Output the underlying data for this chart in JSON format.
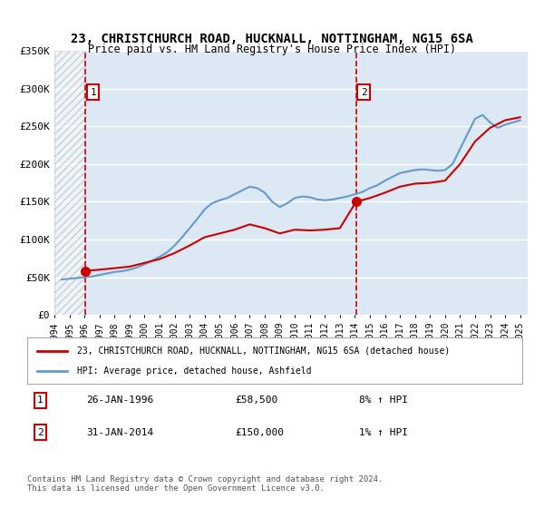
{
  "title": "23, CHRISTCHURCH ROAD, HUCKNALL, NOTTINGHAM, NG15 6SA",
  "subtitle": "Price paid vs. HM Land Registry's House Price Index (HPI)",
  "legend_line1": "23, CHRISTCHURCH ROAD, HUCKNALL, NOTTINGHAM, NG15 6SA (detached house)",
  "legend_line2": "HPI: Average price, detached house, Ashfield",
  "annotation1_label": "1",
  "annotation1_date": "26-JAN-1996",
  "annotation1_price": "£58,500",
  "annotation1_hpi": "8% ↑ HPI",
  "annotation1_year": 1996.07,
  "annotation1_value": 58500,
  "annotation2_label": "2",
  "annotation2_date": "31-JAN-2014",
  "annotation2_price": "£150,000",
  "annotation2_hpi": "1% ↑ HPI",
  "annotation2_year": 2014.08,
  "annotation2_value": 150000,
  "footer": "Contains HM Land Registry data © Crown copyright and database right 2024.\nThis data is licensed under the Open Government Licence v3.0.",
  "ylim": [
    0,
    350000
  ],
  "yticks": [
    0,
    50000,
    100000,
    150000,
    200000,
    250000,
    300000,
    350000
  ],
  "ytick_labels": [
    "£0",
    "£50K",
    "£100K",
    "£150K",
    "£200K",
    "£250K",
    "£300K",
    "£350K"
  ],
  "xlim_start": 1994.0,
  "xlim_end": 2025.5,
  "red_color": "#cc0000",
  "blue_color": "#6699cc",
  "hatch_color": "#cccccc",
  "bg_color": "#dce9f5",
  "grid_color": "#ffffff",
  "years": [
    1994,
    1995,
    1996,
    1997,
    1998,
    1999,
    2000,
    2001,
    2002,
    2003,
    2004,
    2005,
    2006,
    2007,
    2008,
    2009,
    2010,
    2011,
    2012,
    2013,
    2014,
    2015,
    2016,
    2017,
    2018,
    2019,
    2020,
    2021,
    2022,
    2023,
    2024,
    2025
  ],
  "xtick_labels": [
    "1994",
    "1995",
    "1996",
    "1997",
    "1998",
    "1999",
    "2000",
    "2001",
    "2002",
    "2003",
    "2004",
    "2005",
    "2006",
    "2007",
    "2008",
    "2009",
    "2010",
    "2011",
    "2012",
    "2013",
    "2014",
    "2015",
    "2016",
    "2017",
    "2018",
    "2019",
    "2020",
    "2021",
    "2022",
    "2023",
    "2024",
    "2025"
  ],
  "hpi_data": {
    "years": [
      1994.5,
      1995.0,
      1995.5,
      1996.0,
      1996.5,
      1997.0,
      1997.5,
      1998.0,
      1998.5,
      1999.0,
      1999.5,
      2000.0,
      2000.5,
      2001.0,
      2001.5,
      2002.0,
      2002.5,
      2003.0,
      2003.5,
      2004.0,
      2004.5,
      2005.0,
      2005.5,
      2006.0,
      2006.5,
      2007.0,
      2007.5,
      2008.0,
      2008.5,
      2009.0,
      2009.5,
      2010.0,
      2010.5,
      2011.0,
      2011.5,
      2012.0,
      2012.5,
      2013.0,
      2013.5,
      2014.0,
      2014.5,
      2015.0,
      2015.5,
      2016.0,
      2016.5,
      2017.0,
      2017.5,
      2018.0,
      2018.5,
      2019.0,
      2019.5,
      2020.0,
      2020.5,
      2021.0,
      2021.5,
      2022.0,
      2022.5,
      2023.0,
      2023.5,
      2024.0,
      2024.5,
      2025.0
    ],
    "values": [
      47000,
      48000,
      49000,
      50000,
      51000,
      53000,
      55000,
      57000,
      58000,
      60000,
      63000,
      67000,
      72000,
      77000,
      83000,
      92000,
      103000,
      115000,
      127000,
      140000,
      148000,
      152000,
      155000,
      160000,
      165000,
      170000,
      168000,
      162000,
      150000,
      143000,
      148000,
      155000,
      157000,
      156000,
      153000,
      152000,
      153000,
      155000,
      157000,
      160000,
      163000,
      168000,
      172000,
      178000,
      183000,
      188000,
      190000,
      192000,
      193000,
      192000,
      191000,
      192000,
      200000,
      220000,
      240000,
      260000,
      265000,
      255000,
      248000,
      252000,
      255000,
      258000
    ]
  },
  "price_data": {
    "years": [
      1996.07,
      2014.08
    ],
    "values": [
      58500,
      150000
    ]
  },
  "price_line": {
    "years": [
      1996.07,
      1997.0,
      1998.0,
      1999.0,
      2000.0,
      2001.0,
      2002.0,
      2003.0,
      2004.0,
      2005.0,
      2006.0,
      2007.0,
      2008.0,
      2009.0,
      2010.0,
      2011.0,
      2012.0,
      2013.0,
      2014.08,
      2015.0,
      2016.0,
      2017.0,
      2018.0,
      2019.0,
      2020.0,
      2021.0,
      2022.0,
      2023.0,
      2024.0,
      2025.0
    ],
    "values": [
      58500,
      60000,
      62000,
      64000,
      69000,
      74000,
      82000,
      92000,
      103000,
      108000,
      113000,
      120000,
      115000,
      108000,
      113000,
      112000,
      113000,
      115000,
      150000,
      155000,
      162000,
      170000,
      174000,
      175000,
      178000,
      200000,
      230000,
      248000,
      258000,
      262000
    ]
  }
}
